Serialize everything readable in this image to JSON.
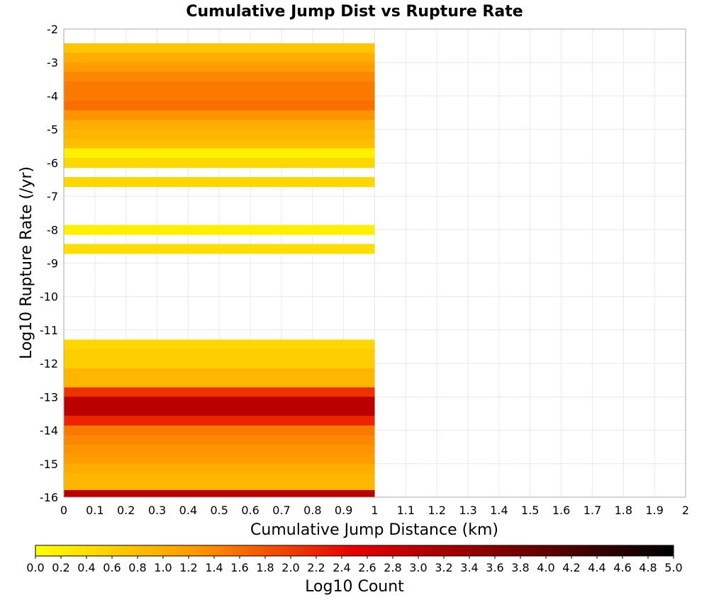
{
  "chart_data": {
    "type": "heatmap",
    "title": "Cumulative Jump Dist vs Rupture Rate",
    "xlabel": "Cumulative Jump Distance (km)",
    "ylabel": "Log10 Rupture Rate (/yr)",
    "xlim": [
      0,
      2
    ],
    "ylim": [
      -16,
      -2
    ],
    "x_ticks": [
      "0",
      "0.1",
      "0.2",
      "0.3",
      "0.4",
      "0.5",
      "0.6",
      "0.7",
      "0.8",
      "0.9",
      "1",
      "1.1",
      "1.2",
      "1.3",
      "1.4",
      "1.5",
      "1.6",
      "1.7",
      "1.8",
      "1.9",
      "2"
    ],
    "y_ticks": [
      "-2",
      "-3",
      "-4",
      "-5",
      "-6",
      "-7",
      "-8",
      "-9",
      "-10",
      "-11",
      "-12",
      "-13",
      "-14",
      "-15",
      "-16"
    ],
    "grid": true,
    "cell_x_range": [
      0,
      1
    ],
    "cell_height": 0.286,
    "cells": [
      {
        "y": -2.57,
        "value": 0.7
      },
      {
        "y": -2.86,
        "value": 1.0
      },
      {
        "y": -3.14,
        "value": 1.2
      },
      {
        "y": -3.43,
        "value": 1.4
      },
      {
        "y": -3.71,
        "value": 1.5
      },
      {
        "y": -4.0,
        "value": 1.5
      },
      {
        "y": -4.29,
        "value": 1.6
      },
      {
        "y": -4.57,
        "value": 1.3
      },
      {
        "y": -4.86,
        "value": 1.0
      },
      {
        "y": -5.14,
        "value": 0.9
      },
      {
        "y": -5.43,
        "value": 0.8
      },
      {
        "y": -5.71,
        "value": 0.2
      },
      {
        "y": -6.0,
        "value": 0.5
      },
      {
        "y": -6.57,
        "value": 0.5
      },
      {
        "y": -8.0,
        "value": 0.2
      },
      {
        "y": -8.57,
        "value": 0.4
      },
      {
        "y": -11.43,
        "value": 0.5
      },
      {
        "y": -11.71,
        "value": 0.6
      },
      {
        "y": -12.0,
        "value": 0.6
      },
      {
        "y": -12.29,
        "value": 0.9
      },
      {
        "y": -12.57,
        "value": 0.9
      },
      {
        "y": -12.86,
        "value": 2.1
      },
      {
        "y": -13.14,
        "value": 3.0
      },
      {
        "y": -13.43,
        "value": 3.0
      },
      {
        "y": -13.71,
        "value": 2.2
      },
      {
        "y": -14.0,
        "value": 1.5
      },
      {
        "y": -14.29,
        "value": 1.4
      },
      {
        "y": -14.57,
        "value": 1.3
      },
      {
        "y": -14.86,
        "value": 1.2
      },
      {
        "y": -15.14,
        "value": 1.0
      },
      {
        "y": -15.43,
        "value": 0.9
      },
      {
        "y": -15.71,
        "value": 0.9
      },
      {
        "y": -15.93,
        "value": 3.0
      }
    ],
    "colorbar": {
      "label": "Log10 Count",
      "range": [
        0,
        5
      ],
      "ticks": [
        "0.0",
        "0.2",
        "0.4",
        "0.6",
        "0.8",
        "1.0",
        "1.2",
        "1.4",
        "1.6",
        "1.8",
        "2.0",
        "2.2",
        "2.4",
        "2.6",
        "2.8",
        "3.0",
        "3.2",
        "3.4",
        "3.6",
        "3.8",
        "4.0",
        "4.2",
        "4.4",
        "4.6",
        "4.8",
        "5.0"
      ],
      "stops": [
        "#ffff00",
        "#ff9900",
        "#e60000",
        "#7a0000",
        "#000000"
      ]
    }
  }
}
